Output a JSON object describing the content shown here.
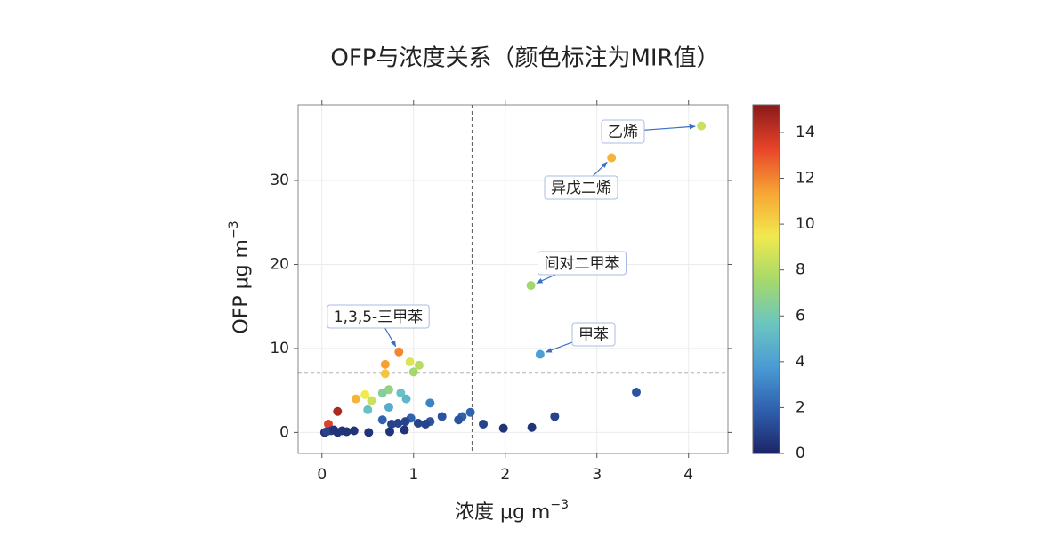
{
  "chart_data": {
    "type": "scatter",
    "title": "OFP与浓度关系（颜色标注为MIR值）",
    "xlabel": {
      "text": "浓度 μg m",
      "sup": "−3"
    },
    "ylabel": {
      "text": "OFP μg m",
      "sup": "−3"
    },
    "x": [
      4.14,
      3.16,
      2.28,
      2.38,
      0.84,
      0.69,
      0.69,
      0.96,
      1.06,
      1.0,
      0.73,
      0.66,
      0.47,
      0.37,
      0.54,
      0.86,
      0.92,
      0.73,
      0.5,
      0.17,
      0.07,
      1.18,
      3.43,
      2.54,
      2.29,
      1.98,
      1.76,
      1.62,
      1.53,
      1.49,
      1.31,
      1.18,
      1.13,
      1.05,
      0.97,
      0.91,
      0.83,
      0.76,
      0.66,
      0.9,
      0.74,
      0.51,
      0.35,
      0.27,
      0.17,
      0.1,
      0.03,
      0.05,
      0.13,
      0.22
    ],
    "values": [
      36.5,
      32.7,
      17.5,
      9.3,
      9.6,
      8.1,
      7.0,
      8.4,
      8.0,
      7.2,
      5.1,
      4.7,
      4.5,
      4.0,
      3.8,
      4.7,
      4.0,
      3.0,
      2.7,
      2.5,
      1.0,
      3.5,
      4.8,
      1.9,
      0.6,
      0.5,
      1.0,
      2.4,
      1.9,
      1.5,
      1.9,
      1.3,
      1.0,
      1.1,
      1.7,
      1.3,
      1.1,
      1.0,
      1.5,
      0.3,
      0.1,
      0.0,
      0.2,
      0.1,
      0.0,
      0.2,
      0.0,
      0.1,
      0.3,
      0.2
    ],
    "color_values": [
      8.5,
      11,
      7.5,
      4,
      12,
      11.5,
      10.5,
      9,
      8,
      7.5,
      7,
      6.5,
      9.5,
      11,
      8.5,
      5.5,
      5,
      4.5,
      5.5,
      14.5,
      13.5,
      3,
      1.5,
      1,
      0.5,
      0.5,
      1,
      2,
      2,
      1.5,
      1.5,
      1.5,
      1,
      1,
      2,
      1,
      1,
      1,
      2,
      0.5,
      0.5,
      0.5,
      0.5,
      0.5,
      0.5,
      1,
      0.5,
      1,
      0.5,
      0.5
    ],
    "xlim": [
      -0.26,
      4.43
    ],
    "ylim": [
      -2.5,
      39.0
    ],
    "xticks": [
      0,
      1,
      2,
      3,
      4
    ],
    "yticks": [
      0,
      10,
      20,
      30
    ],
    "grid": true,
    "reference_lines": {
      "x": 1.64,
      "y": 7.1
    },
    "colorscale": [
      "#1c2466",
      "#2f5fae",
      "#4a9bd4",
      "#6cc6c0",
      "#a6d96a",
      "#f2e94e",
      "#f7a534",
      "#e8442a",
      "#8b1a1a"
    ],
    "clim": [
      0,
      15.2
    ],
    "cticks": [
      0,
      2,
      4,
      6,
      8,
      10,
      12,
      14
    ],
    "annotations": [
      "乙烯",
      "异戊二烯",
      "间对二甲苯",
      "甲苯",
      "1,3,5-三甲苯"
    ]
  }
}
